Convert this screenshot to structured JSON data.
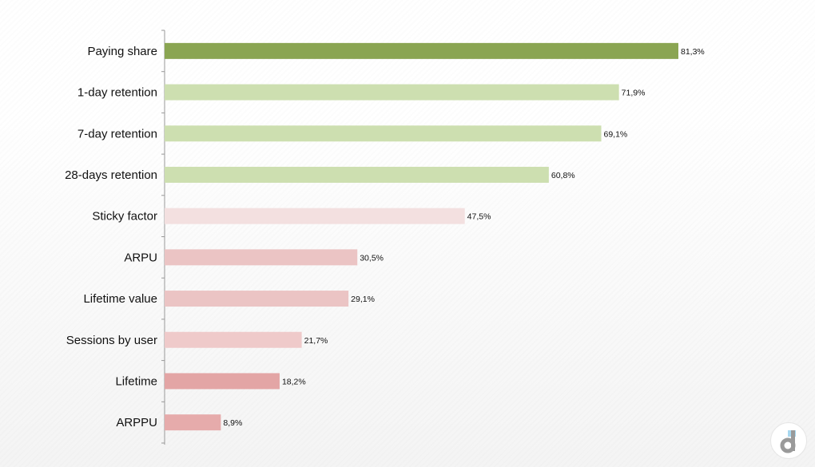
{
  "chart_data": {
    "type": "bar",
    "orientation": "horizontal",
    "title": "",
    "xlabel": "",
    "ylabel": "",
    "categories": [
      "Paying share",
      "1-day retention",
      "7-day retention",
      "28-days retention",
      "Sticky factor",
      "ARPU",
      "Lifetime value",
      "Sessions by user",
      "Lifetime",
      "ARPPU"
    ],
    "values": [
      81.3,
      71.9,
      69.1,
      60.8,
      47.5,
      30.5,
      29.1,
      21.7,
      18.2,
      8.9
    ],
    "labels": [
      "81,3%",
      "71,9%",
      "69,1%",
      "60,8%",
      "47,5%",
      "30,5%",
      "29,1%",
      "21,7%",
      "18,2%",
      "8,9%"
    ],
    "colors": [
      "#8aa552",
      "#cddfb0",
      "#cddfb0",
      "#cddfb0",
      "#f3e0e0",
      "#ebc4c4",
      "#ebc4c4",
      "#efcaca",
      "#e3a5a5",
      "#e6abab"
    ],
    "xlim": [
      0,
      100
    ],
    "grid": false,
    "legend": "none"
  }
}
